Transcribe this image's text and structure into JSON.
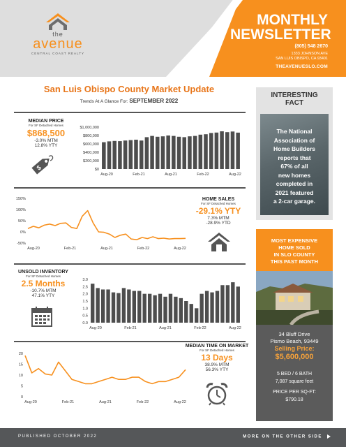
{
  "brand": {
    "the": "the",
    "name": "avenue",
    "tagline": "CENTRAL COAST REALTY"
  },
  "newsletter": {
    "title_line1": "MONTHLY",
    "title_line2": "NEWSLETTER",
    "phone": "(805) 548 2670",
    "address1": "1333 JOHNSON AVE",
    "address2": "SAN LUIS OBISPO, CA 93401",
    "website": "THEAVENUESLO.COM"
  },
  "report": {
    "title": "San Luis Obispo County Market Update",
    "trends_label": "Trends At A Glance For:",
    "trends_month": "SEPTEMBER 2022"
  },
  "median_price": {
    "heading": "MEDIAN PRICE",
    "sub": "For SF Detached Homes",
    "value": "$868,500",
    "mtm": "-3.0% MTM",
    "ytd": "12.8% YTY"
  },
  "home_sales": {
    "heading": "HOME SALES",
    "sub": "For SF Detached Homes",
    "value": "-29.1% YTY",
    "mtm": "7.3% MTM",
    "ytd": "-28.9% YTD"
  },
  "unsold_inventory": {
    "heading": "UNSOLD INVENTORY",
    "sub": "For SF Detached Homes",
    "value": "2.5 Months",
    "mtm": "-10.7% MTM",
    "ytd": "47.1% YTY"
  },
  "median_time": {
    "heading": "MEDIAN TIME ON MARKET",
    "sub": "For SF Detached Homes",
    "value": "13 Days",
    "mtm": "38.9% MTM",
    "ytd": "56.3% YTY"
  },
  "interesting_fact": {
    "title_line1": "INTERESTING",
    "title_line2": "FACT",
    "text_lines": [
      "The National",
      "Association of",
      "Home Builders",
      "reports that",
      "67% of all",
      "new homes",
      "completed in",
      "2021 featured",
      "a 2-car garage."
    ]
  },
  "most_expensive": {
    "title_lines": [
      "MOST EXPENSIVE",
      "HOME SOLD",
      "IN SLO COUNTY",
      "THIS PAST MONTH"
    ],
    "street": "34 Bluff Drive",
    "city": "Pismo Beach, 93449",
    "price_label": "Selling Price:",
    "price": "$5,600,000",
    "beds_baths": "5 BED / 6 BATH",
    "sqft": "7,087 square feet",
    "ppsf_label": "PRICE PER SQ-FT:",
    "ppsf": "$790.18"
  },
  "footer": {
    "left": "PUBLISHED OCTOBER 2022",
    "right": "MORE ON THE OTHER SIDE"
  },
  "colors": {
    "accent": "#f7901e",
    "bars": "#4d4d4d",
    "footer": "#555759"
  },
  "icons": [
    "house-logo-icon",
    "price-tag-icon",
    "house-icon",
    "calendar-icon",
    "alarm-clock-icon",
    "triangle-right-icon"
  ],
  "chart_data": [
    {
      "type": "bar",
      "name_ref": "median_price",
      "x_ticks": [
        "Aug-20",
        "Feb-21",
        "Aug-21",
        "Feb-22",
        "Aug-22"
      ],
      "y_ticks": [
        "$1,000,000",
        "$800,000",
        "$600,000",
        "$400,000",
        "$200,000",
        "$0"
      ],
      "ylim": [
        0,
        1000000
      ],
      "values": [
        640000,
        660000,
        670000,
        665000,
        680000,
        690000,
        700000,
        680000,
        760000,
        790000,
        770000,
        780000,
        800000,
        790000,
        770000,
        760000,
        780000,
        790000,
        820000,
        830000,
        860000,
        870000,
        900000,
        880000,
        895000,
        868500
      ]
    },
    {
      "type": "line",
      "name_ref": "home_sales",
      "x_ticks": [
        "Aug-20",
        "Feb-21",
        "Aug-21",
        "Feb-22",
        "Aug-22"
      ],
      "y_ticks": [
        "150%",
        "100%",
        "50%",
        "0%",
        "-50%"
      ],
      "ylim": [
        -50,
        150
      ],
      "values": [
        15,
        25,
        18,
        30,
        35,
        28,
        38,
        40,
        20,
        15,
        70,
        95,
        40,
        0,
        -2,
        -10,
        -25,
        -15,
        -10,
        -32,
        -35,
        -25,
        -30,
        -22,
        -30,
        -28,
        -32,
        -30,
        -30,
        -29
      ]
    },
    {
      "type": "bar",
      "name_ref": "unsold_inventory",
      "x_ticks": [
        "Aug-20",
        "Feb-21",
        "Aug-21",
        "Feb-22",
        "Aug-22"
      ],
      "y_ticks": [
        "3.0",
        "2.5",
        "2.0",
        "1.5",
        "1.0",
        "0.5",
        "0.0"
      ],
      "ylim": [
        0,
        3
      ],
      "values": [
        2.7,
        2.4,
        2.3,
        2.3,
        2.1,
        2.05,
        2.4,
        2.3,
        2.2,
        2.2,
        2.0,
        2.0,
        1.9,
        2.0,
        1.8,
        2.0,
        1.8,
        1.7,
        1.5,
        1.3,
        1.0,
        2.0,
        2.2,
        2.1,
        2.2,
        2.6,
        2.6,
        2.8,
        2.5
      ]
    },
    {
      "type": "line",
      "name_ref": "median_time",
      "x_ticks": [
        "Aug-20",
        "Feb-21",
        "Aug-21",
        "Feb-22",
        "Aug-22"
      ],
      "y_ticks": [
        "20",
        "15",
        "10",
        "5",
        "0"
      ],
      "ylim": [
        0,
        20
      ],
      "values": [
        19,
        11,
        13,
        10.5,
        10,
        16,
        12,
        8,
        7,
        6,
        6,
        7,
        8,
        9,
        8,
        8,
        9,
        9,
        7,
        6,
        7,
        7,
        8,
        9,
        12.5
      ]
    }
  ]
}
